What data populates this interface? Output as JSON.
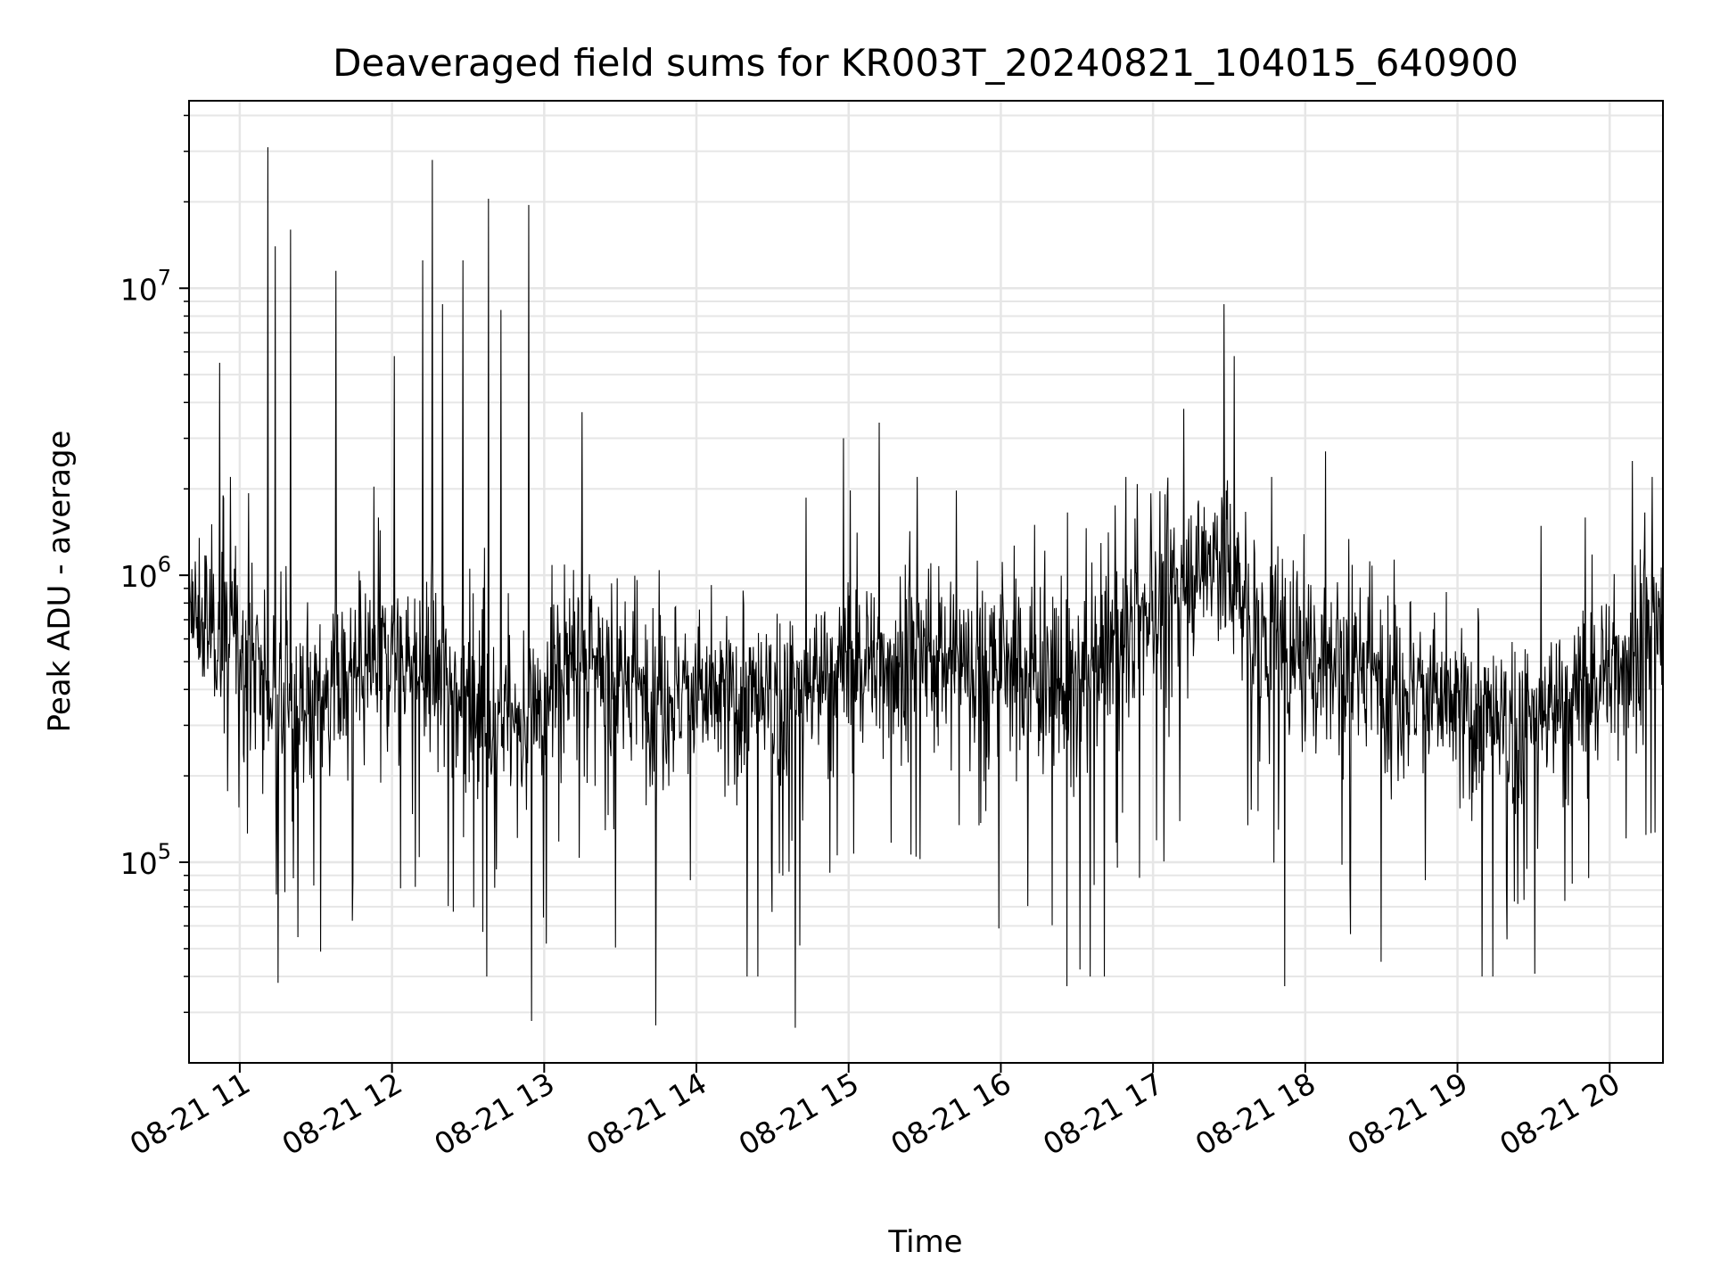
{
  "chart_data": {
    "type": "line",
    "title": "Deaveraged field sums for KR003T_20240821_104015_640900",
    "xlabel": "Time",
    "ylabel": "Peak ADU - average",
    "yscale": "log",
    "ylim": [
      20000,
      45000000
    ],
    "xlim": [
      "2024-08-21 10:40",
      "2024-08-21 20:21"
    ],
    "x_ticks": [
      {
        "t": "2024-08-21 11:00",
        "label": "08-21 11"
      },
      {
        "t": "2024-08-21 12:00",
        "label": "08-21 12"
      },
      {
        "t": "2024-08-21 13:00",
        "label": "08-21 13"
      },
      {
        "t": "2024-08-21 14:00",
        "label": "08-21 14"
      },
      {
        "t": "2024-08-21 15:00",
        "label": "08-21 15"
      },
      {
        "t": "2024-08-21 16:00",
        "label": "08-21 16"
      },
      {
        "t": "2024-08-21 17:00",
        "label": "08-21 17"
      },
      {
        "t": "2024-08-21 18:00",
        "label": "08-21 18"
      },
      {
        "t": "2024-08-21 19:00",
        "label": "08-21 19"
      },
      {
        "t": "2024-08-21 20:00",
        "label": "08-21 20"
      }
    ],
    "y_ticks": [
      {
        "value": 100000,
        "base": "10",
        "exp": "5"
      },
      {
        "value": 1000000,
        "base": "10",
        "exp": "6"
      },
      {
        "value": 10000000,
        "base": "10",
        "exp": "7"
      }
    ],
    "grid": true,
    "line_color": "#000000",
    "peaks": [
      {
        "t": "2024-08-21 10:52",
        "value": 5500000
      },
      {
        "t": "2024-08-21 11:11",
        "value": 31000000
      },
      {
        "t": "2024-08-21 11:14",
        "value": 14000000
      },
      {
        "t": "2024-08-21 11:20",
        "value": 16000000
      },
      {
        "t": "2024-08-21 11:38",
        "value": 11500000
      },
      {
        "t": "2024-08-21 12:01",
        "value": 5800000
      },
      {
        "t": "2024-08-21 12:12",
        "value": 12500000
      },
      {
        "t": "2024-08-21 12:16",
        "value": 28000000
      },
      {
        "t": "2024-08-21 12:20",
        "value": 8800000
      },
      {
        "t": "2024-08-21 12:28",
        "value": 12500000
      },
      {
        "t": "2024-08-21 12:38",
        "value": 20500000
      },
      {
        "t": "2024-08-21 12:43",
        "value": 8400000
      },
      {
        "t": "2024-08-21 12:54",
        "value": 19500000
      },
      {
        "t": "2024-08-21 13:15",
        "value": 3700000
      },
      {
        "t": "2024-08-21 14:58",
        "value": 3000000
      },
      {
        "t": "2024-08-21 15:12",
        "value": 3400000
      },
      {
        "t": "2024-08-21 17:12",
        "value": 3800000
      },
      {
        "t": "2024-08-21 17:28",
        "value": 8800000
      },
      {
        "t": "2024-08-21 17:32",
        "value": 5800000
      },
      {
        "t": "2024-08-21 18:08",
        "value": 2700000
      },
      {
        "t": "2024-08-21 20:09",
        "value": 2500000
      }
    ],
    "troughs": [
      {
        "t": "2024-08-21 11:15",
        "value": 38000
      },
      {
        "t": "2024-08-21 12:55",
        "value": 28000
      },
      {
        "t": "2024-08-21 13:44",
        "value": 27000
      },
      {
        "t": "2024-08-21 14:39",
        "value": 26500
      },
      {
        "t": "2024-08-21 16:26",
        "value": 37000
      },
      {
        "t": "2024-08-21 17:52",
        "value": 37000
      },
      {
        "t": "2024-08-21 18:30",
        "value": 45000
      }
    ],
    "baseline": [
      {
        "t": "2024-08-21 10:40",
        "value": 700000
      },
      {
        "t": "2024-08-21 11:00",
        "value": 600000
      },
      {
        "t": "2024-08-21 11:15",
        "value": 350000
      },
      {
        "t": "2024-08-21 11:40",
        "value": 400000
      },
      {
        "t": "2024-08-21 12:00",
        "value": 550000
      },
      {
        "t": "2024-08-21 12:30",
        "value": 400000
      },
      {
        "t": "2024-08-21 12:50",
        "value": 280000
      },
      {
        "t": "2024-08-21 13:10",
        "value": 500000
      },
      {
        "t": "2024-08-21 13:40",
        "value": 400000
      },
      {
        "t": "2024-08-21 14:30",
        "value": 350000
      },
      {
        "t": "2024-08-21 15:00",
        "value": 500000
      },
      {
        "t": "2024-08-21 16:00",
        "value": 500000
      },
      {
        "t": "2024-08-21 16:30",
        "value": 400000
      },
      {
        "t": "2024-08-21 17:00",
        "value": 800000
      },
      {
        "t": "2024-08-21 17:25",
        "value": 1200000
      },
      {
        "t": "2024-08-21 17:45",
        "value": 600000
      },
      {
        "t": "2024-08-21 18:30",
        "value": 450000
      },
      {
        "t": "2024-08-21 19:20",
        "value": 280000
      },
      {
        "t": "2024-08-21 19:50",
        "value": 400000
      },
      {
        "t": "2024-08-21 20:21",
        "value": 650000
      }
    ]
  }
}
